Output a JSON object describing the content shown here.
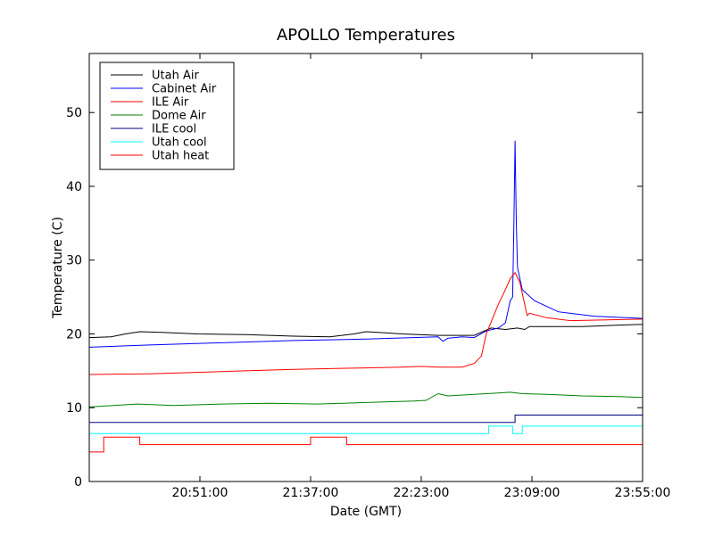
{
  "chart_data": {
    "type": "line",
    "title": "APOLLO Temperatures",
    "xlabel": "Date (GMT)",
    "ylabel": "Temperature (C)",
    "xlim": [
      "20:05:00",
      "23:55:00"
    ],
    "ylim": [
      0,
      58
    ],
    "xticks": [
      "20:51:00",
      "21:37:00",
      "22:23:00",
      "23:09:00",
      "23:55:00"
    ],
    "yticks": [
      0,
      10,
      20,
      30,
      40,
      50
    ],
    "grid": false,
    "legend_position": "top-left",
    "series": [
      {
        "name": "Utah Air",
        "color": "#000000",
        "style": "line",
        "points": [
          [
            "20:05:00",
            19.5
          ],
          [
            "20:14:00",
            19.6
          ],
          [
            "20:20:00",
            20.0
          ],
          [
            "20:26:00",
            20.3
          ],
          [
            "20:35:00",
            20.2
          ],
          [
            "20:50:00",
            20.0
          ],
          [
            "21:10:00",
            19.9
          ],
          [
            "21:30:00",
            19.7
          ],
          [
            "21:45:00",
            19.6
          ],
          [
            "21:55:00",
            20.0
          ],
          [
            "22:00:00",
            20.3
          ],
          [
            "22:05:00",
            20.2
          ],
          [
            "22:15:00",
            20.0
          ],
          [
            "22:30:00",
            19.8
          ],
          [
            "22:45:00",
            19.8
          ],
          [
            "22:52:00",
            20.8
          ],
          [
            "22:58:00",
            20.6
          ],
          [
            "23:03:00",
            20.8
          ],
          [
            "23:06:00",
            20.6
          ],
          [
            "23:08:00",
            21.0
          ],
          [
            "23:15:00",
            21.0
          ],
          [
            "23:30:00",
            21.0
          ],
          [
            "23:45:00",
            21.2
          ],
          [
            "23:55:00",
            21.3
          ]
        ]
      },
      {
        "name": "Cabinet Air",
        "color": "#0000ff",
        "style": "line",
        "points": [
          [
            "20:05:00",
            18.2
          ],
          [
            "20:30:00",
            18.5
          ],
          [
            "21:00:00",
            18.8
          ],
          [
            "21:30:00",
            19.1
          ],
          [
            "22:00:00",
            19.3
          ],
          [
            "22:30:00",
            19.6
          ],
          [
            "22:32:00",
            19.0
          ],
          [
            "22:34:00",
            19.4
          ],
          [
            "22:40:00",
            19.6
          ],
          [
            "22:45:00",
            19.5
          ],
          [
            "22:50:00",
            20.4
          ],
          [
            "22:55:00",
            20.8
          ],
          [
            "22:58:00",
            21.5
          ],
          [
            "23:00:00",
            24.5
          ],
          [
            "23:01:00",
            25.0
          ],
          [
            "23:01:30",
            35.0
          ],
          [
            "23:02:00",
            46.2
          ],
          [
            "23:02:30",
            35.0
          ],
          [
            "23:03:00",
            29.0
          ],
          [
            "23:05:00",
            26.0
          ],
          [
            "23:10:00",
            24.5
          ],
          [
            "23:20:00",
            23.0
          ],
          [
            "23:35:00",
            22.4
          ],
          [
            "23:55:00",
            22.1
          ]
        ]
      },
      {
        "name": "ILE Air",
        "color": "#ff0000",
        "style": "line",
        "points": [
          [
            "20:05:00",
            14.5
          ],
          [
            "20:30:00",
            14.6
          ],
          [
            "21:00:00",
            14.9
          ],
          [
            "21:30:00",
            15.2
          ],
          [
            "22:00:00",
            15.4
          ],
          [
            "22:15:00",
            15.5
          ],
          [
            "22:23:00",
            15.6
          ],
          [
            "22:30:00",
            15.5
          ],
          [
            "22:40:00",
            15.5
          ],
          [
            "22:45:00",
            16.0
          ],
          [
            "22:48:00",
            17.0
          ],
          [
            "22:50:00",
            20.0
          ],
          [
            "22:55:00",
            24.0
          ],
          [
            "22:58:00",
            26.0
          ],
          [
            "23:00:00",
            27.5
          ],
          [
            "23:02:00",
            28.3
          ],
          [
            "23:04:00",
            27.0
          ],
          [
            "23:06:00",
            24.0
          ],
          [
            "23:07:00",
            22.5
          ],
          [
            "23:08:00",
            22.8
          ],
          [
            "23:15:00",
            22.2
          ],
          [
            "23:25:00",
            21.8
          ],
          [
            "23:40:00",
            21.9
          ],
          [
            "23:55:00",
            22.0
          ]
        ]
      },
      {
        "name": "Dome Air",
        "color": "#008000",
        "style": "line",
        "points": [
          [
            "20:05:00",
            10.1
          ],
          [
            "20:15:00",
            10.3
          ],
          [
            "20:25:00",
            10.5
          ],
          [
            "20:40:00",
            10.3
          ],
          [
            "21:00:00",
            10.5
          ],
          [
            "21:20:00",
            10.6
          ],
          [
            "21:40:00",
            10.5
          ],
          [
            "22:00:00",
            10.7
          ],
          [
            "22:20:00",
            10.9
          ],
          [
            "22:25:00",
            11.0
          ],
          [
            "22:30:00",
            11.9
          ],
          [
            "22:34:00",
            11.6
          ],
          [
            "22:45:00",
            11.8
          ],
          [
            "22:55:00",
            12.0
          ],
          [
            "23:00:00",
            12.1
          ],
          [
            "23:05:00",
            11.9
          ],
          [
            "23:15:00",
            11.8
          ],
          [
            "23:30:00",
            11.6
          ],
          [
            "23:45:00",
            11.5
          ],
          [
            "23:55:00",
            11.4
          ]
        ]
      },
      {
        "name": "ILE cool",
        "color": "#000080",
        "style": "step",
        "points": [
          [
            "20:05:00",
            8.0
          ],
          [
            "23:02:00",
            8.0
          ],
          [
            "23:02:00",
            9.0
          ],
          [
            "23:55:00",
            9.0
          ]
        ]
      },
      {
        "name": "Utah cool",
        "color": "#00ffff",
        "style": "step",
        "points": [
          [
            "20:05:00",
            6.5
          ],
          [
            "22:51:00",
            6.5
          ],
          [
            "22:51:00",
            7.5
          ],
          [
            "23:01:00",
            7.5
          ],
          [
            "23:01:00",
            6.5
          ],
          [
            "23:05:00",
            6.5
          ],
          [
            "23:05:00",
            7.5
          ],
          [
            "23:55:00",
            7.5
          ]
        ]
      },
      {
        "name": "Utah heat",
        "color": "#ff0000",
        "style": "step",
        "points": [
          [
            "20:05:00",
            4.0
          ],
          [
            "20:11:00",
            4.0
          ],
          [
            "20:11:00",
            6.0
          ],
          [
            "20:26:00",
            6.0
          ],
          [
            "20:26:00",
            5.0
          ],
          [
            "21:37:00",
            5.0
          ],
          [
            "21:37:00",
            6.0
          ],
          [
            "21:52:00",
            6.0
          ],
          [
            "21:52:00",
            5.0
          ],
          [
            "23:55:00",
            5.0
          ]
        ]
      }
    ]
  }
}
